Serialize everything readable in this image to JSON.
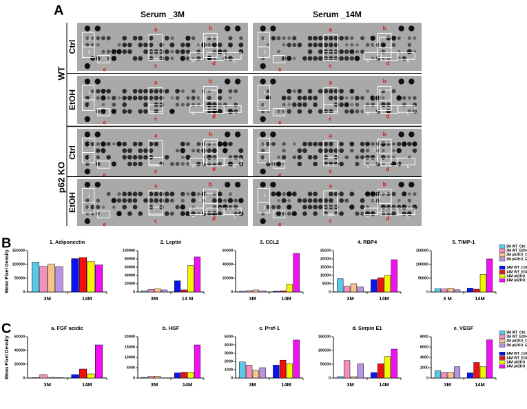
{
  "figure": {
    "panels": [
      "A",
      "B",
      "C"
    ]
  },
  "blots": {
    "column_titles": [
      "Serum _3M",
      "Serum _14M"
    ],
    "genotypes": [
      "WT",
      "p62 KO"
    ],
    "treatments": [
      "Ctrl",
      "EtOH"
    ],
    "spot_letters": [
      "a",
      "b",
      "c",
      "d",
      "e"
    ],
    "spot_numbers": [
      "1",
      "2",
      "3",
      "4",
      "5"
    ]
  },
  "chart_data": [
    {
      "type": "bar",
      "title": "1. Adiponectin",
      "ylabel": "Mean Pixel Density",
      "categories": [
        "3M",
        "14M"
      ],
      "ylim": [
        0,
        150000
      ],
      "yticks": [
        0,
        50000,
        100000,
        150000
      ],
      "series": [
        {
          "color": "#5bc8ea",
          "values": [
            107000,
            null
          ]
        },
        {
          "color": "#f590bd",
          "values": [
            93000,
            null
          ]
        },
        {
          "color": "#f7c48e",
          "values": [
            101000,
            null
          ]
        },
        {
          "color": "#b895e3",
          "values": [
            92000,
            null
          ]
        },
        {
          "color": "#0a14f0",
          "values": [
            null,
            121000
          ]
        },
        {
          "color": "#f01010",
          "values": [
            null,
            125000
          ]
        },
        {
          "color": "#f5f500",
          "values": [
            null,
            111000
          ]
        },
        {
          "color": "#f010f0",
          "values": [
            null,
            98000
          ]
        }
      ]
    },
    {
      "type": "bar",
      "title": "2. Leptin",
      "categories": [
        "3M",
        "14 M"
      ],
      "ylim": [
        0,
        100000
      ],
      "yticks": [
        0,
        20000,
        40000,
        60000,
        80000,
        100000
      ],
      "series": [
        {
          "color": "#5bc8ea",
          "values": [
            3000,
            null
          ]
        },
        {
          "color": "#f590bd",
          "values": [
            6000,
            null
          ]
        },
        {
          "color": "#f7c48e",
          "values": [
            8000,
            null
          ]
        },
        {
          "color": "#b895e3",
          "values": [
            5000,
            null
          ]
        },
        {
          "color": "#0a14f0",
          "values": [
            null,
            27000
          ]
        },
        {
          "color": "#f01010",
          "values": [
            null,
            5000
          ]
        },
        {
          "color": "#f5f500",
          "values": [
            null,
            64000
          ]
        },
        {
          "color": "#f010f0",
          "values": [
            null,
            85000
          ]
        }
      ]
    },
    {
      "type": "bar",
      "title": "3. CCL2",
      "categories": [
        "3M",
        "14M"
      ],
      "ylim": [
        0,
        60000
      ],
      "yticks": [
        0,
        20000,
        40000,
        60000
      ],
      "series": [
        {
          "color": "#5bc8ea",
          "values": [
            1000,
            null
          ]
        },
        {
          "color": "#f590bd",
          "values": [
            2000,
            null
          ]
        },
        {
          "color": "#f7c48e",
          "values": [
            3000,
            null
          ]
        },
        {
          "color": "#b895e3",
          "values": [
            1500,
            null
          ]
        },
        {
          "color": "#0a14f0",
          "values": [
            null,
            1000
          ]
        },
        {
          "color": "#f01010",
          "values": [
            null,
            1500
          ]
        },
        {
          "color": "#f5f500",
          "values": [
            null,
            11000
          ]
        },
        {
          "color": "#f010f0",
          "values": [
            null,
            56000
          ]
        }
      ]
    },
    {
      "type": "bar",
      "title": "4. RBP4",
      "categories": [
        "3M",
        "14M"
      ],
      "ylim": [
        0,
        25000
      ],
      "yticks": [
        0,
        5000,
        10000,
        15000,
        20000,
        25000
      ],
      "series": [
        {
          "color": "#5bc8ea",
          "values": [
            8000,
            null
          ]
        },
        {
          "color": "#f590bd",
          "values": [
            3500,
            null
          ]
        },
        {
          "color": "#f7c48e",
          "values": [
            5000,
            null
          ]
        },
        {
          "color": "#b895e3",
          "values": [
            3000,
            null
          ]
        },
        {
          "color": "#0a14f0",
          "values": [
            null,
            7500
          ]
        },
        {
          "color": "#f01010",
          "values": [
            null,
            8500
          ]
        },
        {
          "color": "#f5f500",
          "values": [
            null,
            10000
          ]
        },
        {
          "color": "#f010f0",
          "values": [
            null,
            19500
          ]
        }
      ]
    },
    {
      "type": "bar",
      "title": "5. TIMP-1",
      "categories": [
        "3 M",
        "14M"
      ],
      "ylim": [
        0,
        150000
      ],
      "yticks": [
        0,
        50000,
        100000,
        150000
      ],
      "legend": "right",
      "series": [
        {
          "name": "3M WT_Ctrl",
          "color": "#5bc8ea",
          "values": [
            12000,
            null
          ]
        },
        {
          "name": "3M WT_EtOH",
          "color": "#f590bd",
          "values": [
            11000,
            null
          ]
        },
        {
          "name": "3M p62KO_Ctrl",
          "color": "#f7c48e",
          "values": [
            14000,
            null
          ]
        },
        {
          "name": "3M p62KO_EtOH",
          "color": "#b895e3",
          "values": [
            8000,
            null
          ]
        },
        {
          "name": "14M WT_Ctrl",
          "color": "#0a14f0",
          "values": [
            null,
            14000
          ]
        },
        {
          "name": "14M WT_EtOH",
          "color": "#f01010",
          "values": [
            null,
            10000
          ]
        },
        {
          "name": "14M p62KO_Ctrl",
          "color": "#f5f500",
          "values": [
            null,
            64000
          ]
        },
        {
          "name": "14M p62KO_EtOH",
          "color": "#f010f0",
          "values": [
            null,
            120000
          ]
        }
      ]
    },
    {
      "type": "bar",
      "title": "a. FGF acidic",
      "ylabel": "Mean Pixel Density",
      "categories": [
        "3M",
        "14M"
      ],
      "ylim": [
        0,
        60000
      ],
      "yticks": [
        0,
        20000,
        40000,
        60000
      ],
      "series": [
        {
          "color": "#5bc8ea",
          "values": [
            500,
            null
          ]
        },
        {
          "color": "#f590bd",
          "values": [
            5000,
            null
          ]
        },
        {
          "color": "#f7c48e",
          "values": [
            1000,
            null
          ]
        },
        {
          "color": "#b895e3",
          "values": [
            500,
            null
          ]
        },
        {
          "color": "#0a14f0",
          "values": [
            null,
            5000
          ]
        },
        {
          "color": "#f01010",
          "values": [
            null,
            13000
          ]
        },
        {
          "color": "#f5f500",
          "values": [
            null,
            6000
          ]
        },
        {
          "color": "#f010f0",
          "values": [
            null,
            48000
          ]
        }
      ]
    },
    {
      "type": "bar",
      "title": "b. HGF",
      "categories": [
        "3M",
        "14M"
      ],
      "ylim": [
        0,
        20000
      ],
      "yticks": [
        0,
        5000,
        10000,
        15000,
        20000
      ],
      "series": [
        {
          "color": "#5bc8ea",
          "values": [
            300,
            null
          ]
        },
        {
          "color": "#f590bd",
          "values": [
            800,
            null
          ]
        },
        {
          "color": "#f7c48e",
          "values": [
            900,
            null
          ]
        },
        {
          "color": "#b895e3",
          "values": [
            100,
            null
          ]
        },
        {
          "color": "#0a14f0",
          "values": [
            null,
            2500
          ]
        },
        {
          "color": "#f01010",
          "values": [
            null,
            2800
          ]
        },
        {
          "color": "#f5f500",
          "values": [
            null,
            2800
          ]
        },
        {
          "color": "#f010f0",
          "values": [
            null,
            16000
          ]
        }
      ]
    },
    {
      "type": "bar",
      "title": "c. Pref-1",
      "categories": [
        "3M",
        "14M"
      ],
      "ylim": [
        0,
        5000
      ],
      "yticks": [
        0,
        1000,
        2000,
        3000,
        4000,
        5000
      ],
      "series": [
        {
          "color": "#5bc8ea",
          "values": [
            1950,
            null
          ]
        },
        {
          "color": "#f590bd",
          "values": [
            1550,
            null
          ]
        },
        {
          "color": "#f7c48e",
          "values": [
            950,
            null
          ]
        },
        {
          "color": "#b895e3",
          "values": [
            1250,
            null
          ]
        },
        {
          "color": "#0a14f0",
          "values": [
            null,
            1550
          ]
        },
        {
          "color": "#f01010",
          "values": [
            null,
            2150
          ]
        },
        {
          "color": "#f5f500",
          "values": [
            null,
            1750
          ]
        },
        {
          "color": "#f010f0",
          "values": [
            null,
            4600
          ]
        }
      ]
    },
    {
      "type": "bar",
      "title": "d. Serpin E1",
      "categories": [
        "3M",
        "14M"
      ],
      "ylim": [
        0,
        150000
      ],
      "yticks": [
        0,
        50000,
        100000,
        150000
      ],
      "series": [
        {
          "color": "#5bc8ea",
          "values": [
            5000,
            null
          ]
        },
        {
          "color": "#f590bd",
          "values": [
            63000,
            null
          ]
        },
        {
          "color": "#f7c48e",
          "values": [
            5000,
            null
          ]
        },
        {
          "color": "#b895e3",
          "values": [
            52000,
            null
          ]
        },
        {
          "color": "#0a14f0",
          "values": [
            null,
            20000
          ]
        },
        {
          "color": "#f01010",
          "values": [
            null,
            52000
          ]
        },
        {
          "color": "#f5f500",
          "values": [
            null,
            78000
          ]
        },
        {
          "color": "#f010f0",
          "values": [
            null,
            105000
          ]
        }
      ]
    },
    {
      "type": "bar",
      "title": "e. VEGF",
      "categories": [
        "3M",
        "14M"
      ],
      "ylim": [
        0,
        8000
      ],
      "yticks": [
        0,
        2000,
        4000,
        6000,
        8000
      ],
      "legend": "right",
      "series": [
        {
          "name": "3M WT_Ctrl",
          "color": "#5bc8ea",
          "values": [
            1400,
            null
          ]
        },
        {
          "name": "3M WT_EtOH",
          "color": "#f590bd",
          "values": [
            1100,
            null
          ]
        },
        {
          "name": "3M p62KO_Ctrl",
          "color": "#f7c48e",
          "values": [
            1100,
            null
          ]
        },
        {
          "name": "3M p62KO_EtOH",
          "color": "#b895e3",
          "values": [
            2200,
            null
          ]
        },
        {
          "name": "14M WT_Ctrl",
          "color": "#0a14f0",
          "values": [
            null,
            1000
          ]
        },
        {
          "name": "14M WT_EtOH",
          "color": "#f01010",
          "values": [
            null,
            3000
          ]
        },
        {
          "name": "14M p62KO_Ctrl",
          "color": "#f5f500",
          "values": [
            null,
            2200
          ]
        },
        {
          "name": "14M p62KO_EtOH",
          "color": "#f010f0",
          "values": [
            null,
            7400
          ]
        }
      ]
    }
  ]
}
